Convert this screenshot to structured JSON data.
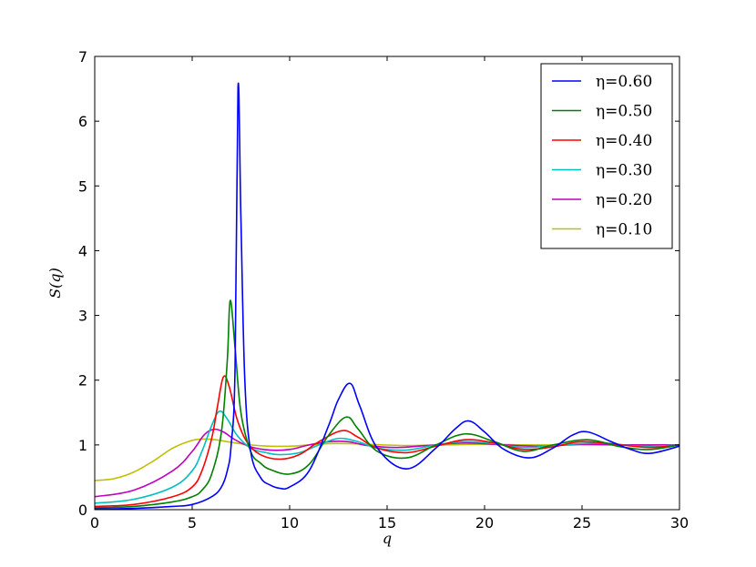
{
  "chart_data": {
    "type": "line",
    "title": "",
    "xlabel": "q",
    "ylabel": "S(q)",
    "xlim": [
      0,
      30
    ],
    "ylim": [
      0,
      7
    ],
    "x_ticks": [
      0,
      5,
      10,
      15,
      20,
      25,
      30
    ],
    "y_ticks": [
      0,
      1,
      2,
      3,
      4,
      5,
      6,
      7
    ],
    "grid": false,
    "legend_position": "top-right",
    "series": [
      {
        "name": "η=0.60",
        "color": "#0000ff",
        "x": [
          0,
          2,
          4,
          5,
          6,
          6.5,
          6.8,
          7.0,
          7.2,
          7.35,
          7.5,
          7.7,
          8.0,
          8.5,
          9.0,
          9.5,
          10.0,
          11.0,
          12.0,
          12.5,
          13.1,
          13.6,
          14.5,
          16.0,
          17.5,
          18.5,
          19.2,
          20.0,
          21.0,
          22.3,
          23.5,
          24.5,
          25.3,
          26.5,
          27.5,
          28.5,
          30
        ],
        "y": [
          0.01,
          0.02,
          0.05,
          0.08,
          0.2,
          0.35,
          0.6,
          1.0,
          2.2,
          6.52,
          4.5,
          2.0,
          0.9,
          0.5,
          0.38,
          0.33,
          0.35,
          0.6,
          1.3,
          1.7,
          1.95,
          1.6,
          0.95,
          0.63,
          0.95,
          1.25,
          1.37,
          1.2,
          0.93,
          0.8,
          0.95,
          1.15,
          1.2,
          1.05,
          0.93,
          0.87,
          0.98
        ]
      },
      {
        "name": "η=0.50",
        "color": "#008000",
        "x": [
          0,
          2,
          4,
          5,
          5.5,
          6.0,
          6.5,
          6.8,
          6.95,
          7.2,
          7.5,
          8.0,
          8.5,
          9.0,
          10.0,
          11.0,
          12.0,
          12.9,
          13.5,
          14.5,
          16.0,
          17.5,
          19.0,
          20.5,
          22.0,
          23.5,
          25.3,
          27.0,
          28.5,
          30
        ],
        "y": [
          0.03,
          0.05,
          0.12,
          0.2,
          0.3,
          0.55,
          1.2,
          2.3,
          3.23,
          2.5,
          1.5,
          0.9,
          0.72,
          0.62,
          0.55,
          0.7,
          1.15,
          1.43,
          1.25,
          0.9,
          0.8,
          1.0,
          1.17,
          1.05,
          0.9,
          1.0,
          1.08,
          0.97,
          0.93,
          1.0
        ]
      },
      {
        "name": "η=0.40",
        "color": "#ff0000",
        "x": [
          0,
          2,
          4,
          5,
          5.5,
          6.0,
          6.3,
          6.6,
          6.9,
          7.3,
          7.8,
          8.5,
          9.5,
          10.5,
          11.5,
          12.7,
          13.5,
          14.5,
          16.0,
          17.5,
          19.0,
          20.5,
          22.0,
          23.5,
          25.0,
          27.0,
          28.5,
          30
        ],
        "y": [
          0.05,
          0.08,
          0.2,
          0.35,
          0.6,
          1.1,
          1.6,
          2.05,
          1.9,
          1.4,
          1.05,
          0.85,
          0.78,
          0.85,
          1.05,
          1.22,
          1.12,
          0.95,
          0.88,
          0.98,
          1.08,
          1.03,
          0.93,
          0.97,
          1.05,
          1.0,
          0.96,
          1.0
        ]
      },
      {
        "name": "η=0.30",
        "color": "#00bfbf",
        "x": [
          0,
          2,
          4,
          5,
          5.5,
          6.0,
          6.4,
          6.8,
          7.3,
          8.0,
          8.8,
          9.5,
          10.5,
          11.5,
          12.5,
          13.5,
          14.5,
          16.0,
          17.5,
          19.0,
          20.5,
          22.0,
          24.0,
          26.0,
          28.0,
          30
        ],
        "y": [
          0.1,
          0.16,
          0.35,
          0.6,
          0.9,
          1.3,
          1.52,
          1.4,
          1.15,
          0.95,
          0.88,
          0.85,
          0.88,
          1.0,
          1.1,
          1.05,
          0.95,
          0.92,
          1.0,
          1.05,
          1.02,
          0.96,
          1.0,
          1.03,
          0.98,
          1.0
        ]
      },
      {
        "name": "η=0.20",
        "color": "#bf00bf",
        "x": [
          0,
          2,
          4,
          5,
          5.6,
          6.1,
          6.6,
          7.2,
          8.0,
          9.0,
          10.0,
          11.0,
          12.0,
          13.0,
          14.0,
          15.5,
          17.0,
          19.0,
          21.0,
          23.0,
          25.0,
          27.0,
          30
        ],
        "y": [
          0.2,
          0.3,
          0.6,
          0.9,
          1.15,
          1.24,
          1.2,
          1.08,
          0.97,
          0.92,
          0.93,
          1.0,
          1.05,
          1.05,
          0.99,
          0.96,
          0.99,
          1.03,
          1.0,
          0.98,
          1.01,
          1.0,
          1.0
        ]
      },
      {
        "name": "η=0.10",
        "color": "#bfbf00",
        "x": [
          0,
          1,
          2,
          3,
          4,
          5,
          5.6,
          6.2,
          7.0,
          8.0,
          9.0,
          10.0,
          11.0,
          12.0,
          13.0,
          14.0,
          16.0,
          18.0,
          20.0,
          22.0,
          25.0,
          30
        ],
        "y": [
          0.45,
          0.48,
          0.58,
          0.75,
          0.95,
          1.07,
          1.09,
          1.08,
          1.04,
          1.0,
          0.98,
          0.98,
          1.0,
          1.02,
          1.02,
          1.01,
          0.99,
          1.0,
          1.01,
          1.0,
          1.0,
          1.0
        ]
      }
    ]
  }
}
